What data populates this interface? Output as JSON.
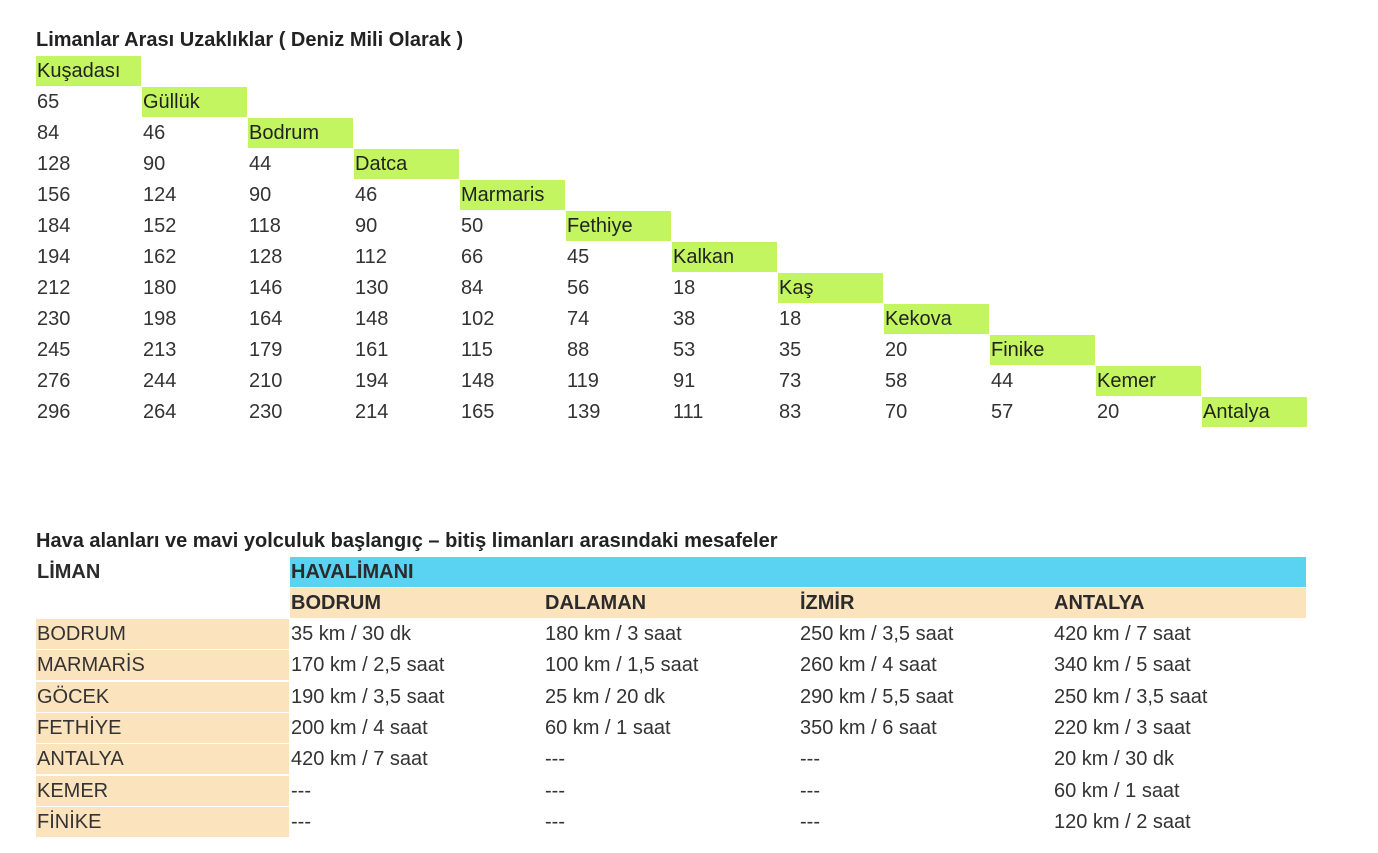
{
  "distance_table": {
    "title": "Limanlar Arası Uzaklıklar ( Deniz Mili Olarak )",
    "ports": [
      "Kuşadası",
      "Güllük",
      "Bodrum",
      "Datca",
      "Marmaris",
      "Fethiye",
      "Kalkan",
      "Kaş",
      "Kekova",
      "Finike",
      "Kemer",
      "Antalya"
    ],
    "rows": [
      [],
      [
        "65"
      ],
      [
        "84",
        "46"
      ],
      [
        "128",
        "90",
        "44"
      ],
      [
        "156",
        "124",
        "90",
        "46"
      ],
      [
        "184",
        "152",
        "118",
        "90",
        "50"
      ],
      [
        "194",
        "162",
        "128",
        "112",
        "66",
        "45"
      ],
      [
        "212",
        "180",
        "146",
        "130",
        "84",
        "56",
        "18"
      ],
      [
        "230",
        "198",
        "164",
        "148",
        "102",
        "74",
        "38",
        "18"
      ],
      [
        "245",
        "213",
        "179",
        "161",
        "115",
        "88",
        "53",
        "35",
        "20"
      ],
      [
        "276",
        "244",
        "210",
        "194",
        "148",
        "119",
        "91",
        "73",
        "58",
        "44"
      ],
      [
        "296",
        "264",
        "230",
        "214",
        "165",
        "139",
        "111",
        "83",
        "70",
        "57",
        "20"
      ]
    ]
  },
  "airport_table": {
    "title": "Hava alanları ve mavi yolculuk başlangıç – bitiş limanları arasındaki mesafeler",
    "liman_header": "LİMAN",
    "group_header": "HAVALİMANI",
    "airports": [
      "BODRUM",
      "DALAMAN",
      "İZMİR",
      "ANTALYA"
    ],
    "rows": [
      {
        "port": "BODRUM",
        "values": [
          "35 km / 30 dk",
          "180 km / 3 saat",
          "250 km / 3,5 saat",
          "420 km / 7 saat"
        ]
      },
      {
        "port": "MARMARİS",
        "values": [
          "170 km / 2,5 saat",
          "100 km / 1,5 saat",
          "260 km / 4 saat",
          "340 km / 5 saat"
        ]
      },
      {
        "port": "GÖCEK",
        "values": [
          "190 km / 3,5 saat",
          "25 km / 20 dk",
          "290 km / 5,5 saat",
          "250 km / 3,5 saat"
        ]
      },
      {
        "port": "FETHİYE",
        "values": [
          "200 km / 4 saat",
          "60 km / 1 saat",
          "350 km / 6 saat",
          "220 km / 3 saat"
        ]
      },
      {
        "port": "ANTALYA",
        "values": [
          "420 km / 7 saat",
          "---",
          "---",
          "20 km / 30 dk"
        ]
      },
      {
        "port": "KEMER",
        "values": [
          "---",
          "---",
          "---",
          "60 km / 1 saat"
        ]
      },
      {
        "port": "FİNİKE",
        "values": [
          "---",
          "---",
          "---",
          "120 km / 2 saat"
        ]
      }
    ]
  }
}
